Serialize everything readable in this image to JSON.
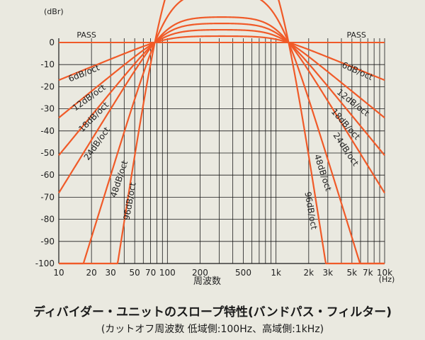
{
  "chart_data": {
    "type": "line",
    "title": "ディバイダー・ユニットのスロープ特性(バンドパス・フィルター)",
    "subtitle": "(カットオフ周波数 低域側:100Hz、高域側:1kHz)",
    "xlabel": "周波数",
    "x_unit": "(Hz)",
    "y_unit": "(dBr)",
    "x_scale": "log",
    "xlim": [
      10,
      10000
    ],
    "ylim": [
      -100,
      0
    ],
    "grid": true,
    "x_tick_labels": [
      {
        "value": 10,
        "label": "10"
      },
      {
        "value": 20,
        "label": "20"
      },
      {
        "value": 30,
        "label": "30"
      },
      {
        "value": 50,
        "label": "50"
      },
      {
        "value": 70,
        "label": "70"
      },
      {
        "value": 100,
        "label": "100"
      },
      {
        "value": 200,
        "label": "200"
      },
      {
        "value": 500,
        "label": "500"
      },
      {
        "value": 1000,
        "label": "1k"
      },
      {
        "value": 2000,
        "label": "2k"
      },
      {
        "value": 3000,
        "label": "3k"
      },
      {
        "value": 5000,
        "label": "5k"
      },
      {
        "value": 7000,
        "label": "7k"
      },
      {
        "value": 10000,
        "label": "10k"
      }
    ],
    "y_tick_labels": [
      {
        "value": 0,
        "label": "0"
      },
      {
        "value": -10,
        "label": "-10"
      },
      {
        "value": -20,
        "label": "-20"
      },
      {
        "value": -30,
        "label": "-30"
      },
      {
        "value": -40,
        "label": "-40"
      },
      {
        "value": -50,
        "label": "-50"
      },
      {
        "value": -60,
        "label": "-60"
      },
      {
        "value": -70,
        "label": "-70"
      },
      {
        "value": -80,
        "label": "-80"
      },
      {
        "value": -90,
        "label": "-90"
      },
      {
        "value": -100,
        "label": "-100"
      }
    ],
    "pass_label": "PASS",
    "low_cutoff_hz": 100,
    "high_cutoff_hz": 1000,
    "series": [
      {
        "name": "6dB/oct",
        "slope_db_per_oct": 6
      },
      {
        "name": "12dB/oct",
        "slope_db_per_oct": 12
      },
      {
        "name": "18dB/oct",
        "slope_db_per_oct": 18
      },
      {
        "name": "24dB/oct",
        "slope_db_per_oct": 24
      },
      {
        "name": "48dB/oct",
        "slope_db_per_oct": 48
      },
      {
        "name": "96dB/oct",
        "slope_db_per_oct": 96
      }
    ],
    "colors": {
      "curve": "#f05a28",
      "grid": "#1a1a1a",
      "background": "#eae9e0"
    }
  }
}
